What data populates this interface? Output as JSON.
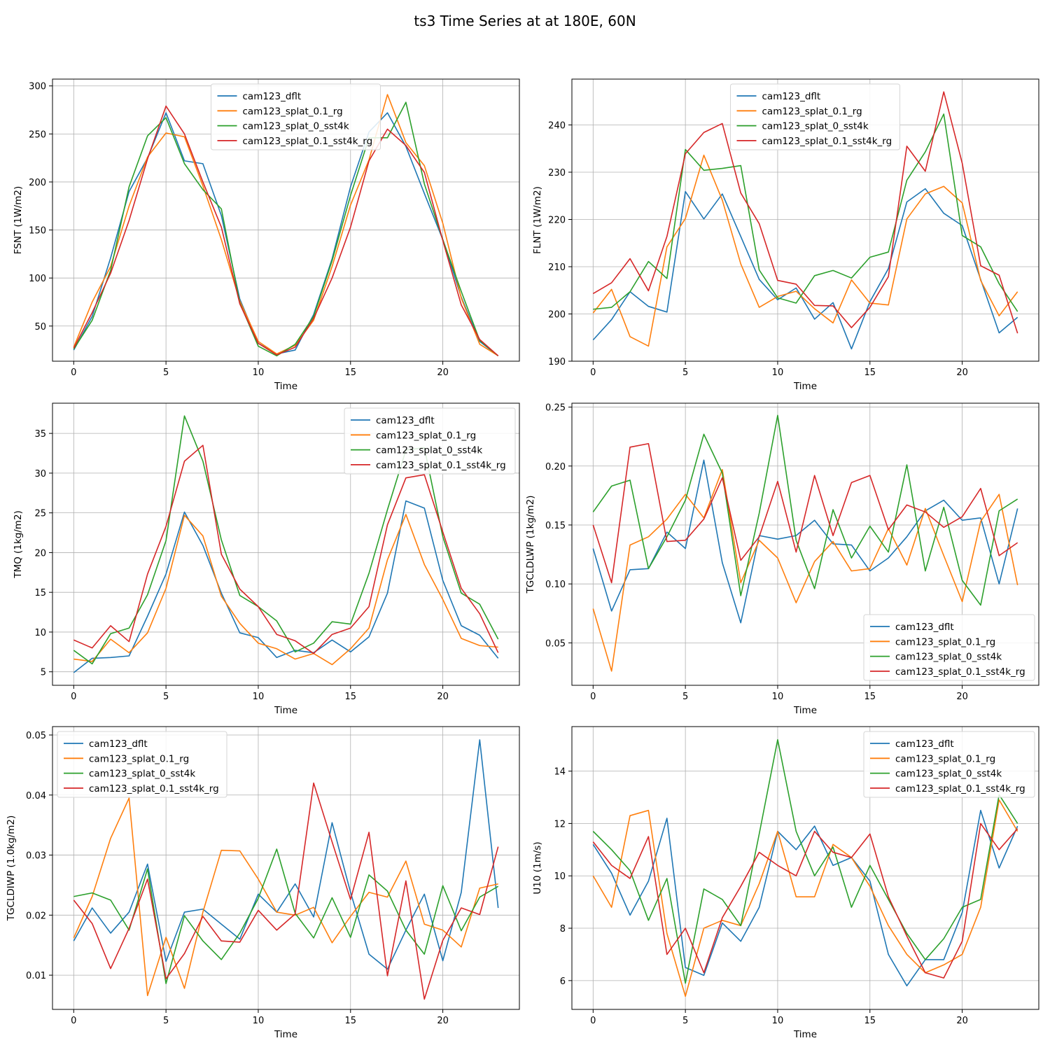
{
  "figure": {
    "title": "ts3 Time Series at at 180E, 60N"
  },
  "colors": {
    "cam123_dflt": "#1f77b4",
    "cam123_splat_0.1_rg": "#ff7f0e",
    "cam123_splat_0_sst4k": "#2ca02c",
    "cam123_splat_0.1_sst4k_rg": "#d62728"
  },
  "chart_data": [
    {
      "type": "line",
      "id": "fsnt",
      "xlabel": "Time",
      "ylabel": "FSNT (1W/m2)",
      "xlim": [
        -1.15,
        24.15
      ],
      "ylim": [
        13.4,
        307.1
      ],
      "xticks": [
        0,
        5,
        10,
        15,
        20
      ],
      "yticks": [
        50,
        100,
        150,
        200,
        250,
        300
      ],
      "legend": "upper-center",
      "x": [
        0,
        1,
        2,
        3,
        4,
        5,
        6,
        7,
        8,
        9,
        10,
        11,
        12,
        13,
        14,
        15,
        16,
        17,
        18,
        19,
        20,
        21,
        22,
        23
      ],
      "series": [
        {
          "name": "cam123_dflt",
          "values": [
            25,
            60,
            121,
            190,
            225,
            272,
            222,
            219,
            165,
            78,
            32,
            21,
            25,
            62,
            120,
            195,
            252,
            272,
            237,
            188,
            140,
            80,
            34,
            19
          ]
        },
        {
          "name": "cam123_splat_0.1_rg",
          "values": [
            28,
            75,
            112,
            175,
            226,
            251,
            247,
            196,
            140,
            76,
            34,
            21,
            30,
            56,
            112,
            176,
            223,
            291,
            241,
            217,
            157,
            79,
            31,
            19
          ]
        },
        {
          "name": "cam123_splat_0_sst4k",
          "values": [
            26,
            56,
            108,
            195,
            248,
            267,
            219,
            192,
            172,
            74,
            29,
            19,
            31,
            60,
            118,
            186,
            246,
            246,
            283,
            198,
            140,
            86,
            35,
            19
          ]
        },
        {
          "name": "cam123_splat_0.1_sst4k_rg",
          "values": [
            27,
            64,
            105,
            160,
            224,
            279,
            250,
            200,
            153,
            73,
            32,
            20,
            28,
            58,
            100,
            153,
            222,
            255,
            238,
            210,
            139,
            72,
            36,
            19
          ]
        }
      ]
    },
    {
      "type": "line",
      "id": "flnt",
      "xlabel": "Time",
      "ylabel": "FLNT (1W/m2)",
      "xlim": [
        -1.15,
        24.15
      ],
      "ylim": [
        190,
        249.7
      ],
      "xticks": [
        0,
        5,
        10,
        15,
        20
      ],
      "yticks": [
        190,
        200,
        210,
        220,
        230,
        240
      ],
      "legend": "upper-center",
      "x": [
        0,
        1,
        2,
        3,
        4,
        5,
        6,
        7,
        8,
        9,
        10,
        11,
        12,
        13,
        14,
        15,
        16,
        17,
        18,
        19,
        20,
        21,
        22,
        23
      ],
      "series": [
        {
          "name": "cam123_dflt",
          "values": [
            194.5,
            198.8,
            204.7,
            201.6,
            200.4,
            225.9,
            220.1,
            225.4,
            216.4,
            207.3,
            203,
            205.5,
            198.9,
            202.4,
            192.6,
            202.6,
            209.6,
            223.7,
            226.5,
            221.3,
            218.7,
            207.3,
            196,
            199.3
          ]
        },
        {
          "name": "cam123_splat_0.1_rg",
          "values": [
            200.2,
            205.2,
            195.2,
            193.2,
            214.2,
            220.2,
            233.6,
            224.1,
            210.6,
            201.4,
            203.7,
            204.8,
            201.1,
            198.1,
            207.2,
            202.3,
            201.9,
            220.1,
            225.4,
            227,
            223.5,
            207.1,
            199.6,
            204.7
          ]
        },
        {
          "name": "cam123_splat_0_sst4k",
          "values": [
            201,
            201.4,
            204.7,
            211.1,
            207.5,
            234.8,
            230.4,
            230.8,
            231.4,
            209.3,
            203.4,
            202.3,
            208.1,
            209.2,
            207.6,
            212,
            213.1,
            228.3,
            234.3,
            242.3,
            216.6,
            214.2,
            206.4,
            200.5
          ]
        },
        {
          "name": "cam123_splat_0.1_sst4k_rg",
          "values": [
            204.3,
            206.6,
            211.7,
            204.9,
            216.4,
            233.9,
            238.4,
            240.3,
            225.6,
            219.1,
            207.1,
            206.3,
            201.8,
            201.7,
            197.1,
            201.4,
            207.9,
            235.5,
            230.2,
            247,
            231.9,
            210.2,
            208.2,
            195.9
          ]
        }
      ]
    },
    {
      "type": "line",
      "id": "tmq",
      "xlabel": "Time",
      "ylabel": "TMQ (1kg/m2)",
      "xlim": [
        -1.15,
        24.15
      ],
      "ylim": [
        3.3,
        38.8
      ],
      "xticks": [
        0,
        5,
        10,
        15,
        20
      ],
      "yticks": [
        5,
        10,
        15,
        20,
        25,
        30,
        35
      ],
      "legend": "upper-right",
      "x": [
        0,
        1,
        2,
        3,
        4,
        5,
        6,
        7,
        8,
        9,
        10,
        11,
        12,
        13,
        14,
        15,
        16,
        17,
        18,
        19,
        20,
        21,
        22,
        23
      ],
      "series": [
        {
          "name": "cam123_dflt",
          "values": [
            4.9,
            6.7,
            6.8,
            7,
            12,
            17.3,
            25.1,
            20.9,
            14.9,
            9.9,
            9.3,
            6.8,
            7.7,
            7.4,
            9,
            7.5,
            9.4,
            14.9,
            26.5,
            25.6,
            16.5,
            10.8,
            9.6,
            6.7
          ]
        },
        {
          "name": "cam123_splat_0.1_rg",
          "values": [
            6.6,
            6.3,
            9.1,
            7.4,
            9.9,
            15.5,
            24.7,
            22.1,
            14.5,
            11.1,
            8.6,
            7.9,
            6.6,
            7.3,
            5.9,
            7.9,
            10.5,
            19.1,
            24.8,
            18.5,
            14.1,
            9.2,
            8.3,
            8.1
          ]
        },
        {
          "name": "cam123_splat_0_sst4k",
          "values": [
            7.7,
            6,
            9.8,
            10.5,
            14.7,
            21.5,
            37.2,
            31.5,
            21.6,
            14.6,
            13.2,
            11.4,
            7.5,
            8.6,
            11.3,
            11,
            17.4,
            25.4,
            32.9,
            33.2,
            22,
            14.9,
            13.5,
            9.1
          ]
        },
        {
          "name": "cam123_splat_0.1_sst4k_rg",
          "values": [
            9,
            8,
            10.8,
            8.8,
            17.3,
            23.3,
            31.5,
            33.5,
            19.8,
            15.4,
            13.2,
            9.7,
            8.9,
            7.3,
            9.7,
            10.5,
            13.2,
            23.5,
            29.4,
            29.8,
            22.6,
            15.5,
            12.3,
            7.4
          ]
        }
      ]
    },
    {
      "type": "line",
      "id": "tgcldlwp",
      "xlabel": "Time",
      "ylabel": "TGCLDLWP (1kg/m2)",
      "xlim": [
        -1.15,
        24.15
      ],
      "ylim": [
        0.014,
        0.2533
      ],
      "xticks": [
        0,
        5,
        10,
        15,
        20
      ],
      "yticks": [
        0.05,
        0.1,
        0.15,
        0.2,
        0.25
      ],
      "ytick_labels": [
        "0.05",
        "0.10",
        "0.15",
        "0.20",
        "0.25"
      ],
      "legend": "lower-right",
      "x": [
        0,
        1,
        2,
        3,
        4,
        5,
        6,
        7,
        8,
        9,
        10,
        11,
        12,
        13,
        14,
        15,
        16,
        17,
        18,
        19,
        20,
        21,
        22,
        23
      ],
      "series": [
        {
          "name": "cam123_dflt",
          "values": [
            0.13,
            0.077,
            0.112,
            0.113,
            0.144,
            0.13,
            0.205,
            0.118,
            0.067,
            0.141,
            0.138,
            0.141,
            0.154,
            0.134,
            0.133,
            0.111,
            0.122,
            0.14,
            0.162,
            0.171,
            0.154,
            0.156,
            0.1,
            0.164
          ]
        },
        {
          "name": "cam123_splat_0.1_rg",
          "values": [
            0.079,
            0.026,
            0.133,
            0.14,
            0.155,
            0.176,
            0.156,
            0.197,
            0.101,
            0.137,
            0.122,
            0.084,
            0.119,
            0.136,
            0.111,
            0.113,
            0.147,
            0.116,
            0.164,
            0.124,
            0.085,
            0.153,
            0.176,
            0.099
          ]
        },
        {
          "name": "cam123_splat_0_sst4k",
          "values": [
            0.161,
            0.183,
            0.188,
            0.113,
            0.14,
            0.171,
            0.227,
            0.194,
            0.09,
            0.16,
            0.243,
            0.137,
            0.096,
            0.163,
            0.122,
            0.149,
            0.127,
            0.201,
            0.111,
            0.165,
            0.103,
            0.082,
            0.162,
            0.172
          ]
        },
        {
          "name": "cam123_splat_0.1_sst4k_rg",
          "values": [
            0.15,
            0.101,
            0.216,
            0.219,
            0.136,
            0.137,
            0.155,
            0.19,
            0.12,
            0.14,
            0.187,
            0.127,
            0.192,
            0.141,
            0.186,
            0.192,
            0.146,
            0.167,
            0.161,
            0.148,
            0.157,
            0.181,
            0.124,
            0.135
          ]
        }
      ]
    },
    {
      "type": "line",
      "id": "tgcldiwp",
      "xlabel": "Time",
      "ylabel": "TGCLDIWP (1.0kg/m2)",
      "xlim": [
        -1.15,
        24.15
      ],
      "ylim": [
        0.0043,
        0.0514
      ],
      "xticks": [
        0,
        5,
        10,
        15,
        20
      ],
      "yticks": [
        0.01,
        0.02,
        0.03,
        0.04,
        0.05
      ],
      "ytick_labels": [
        "0.01",
        "0.02",
        "0.03",
        "0.04",
        "0.05"
      ],
      "legend": "upper-left",
      "x": [
        0,
        1,
        2,
        3,
        4,
        5,
        6,
        7,
        8,
        9,
        10,
        11,
        12,
        13,
        14,
        15,
        16,
        17,
        18,
        19,
        20,
        21,
        22,
        23
      ],
      "series": [
        {
          "name": "cam123_dflt",
          "values": [
            0.0157,
            0.0212,
            0.017,
            0.0205,
            0.0285,
            0.0123,
            0.0205,
            0.021,
            0.0185,
            0.016,
            0.0235,
            0.0205,
            0.0252,
            0.0197,
            0.0354,
            0.0238,
            0.0135,
            0.011,
            0.0175,
            0.0235,
            0.0124,
            0.0238,
            0.0492,
            0.0212
          ]
        },
        {
          "name": "cam123_splat_0.1_rg",
          "values": [
            0.0162,
            0.0231,
            0.0328,
            0.0395,
            0.0066,
            0.0163,
            0.0078,
            0.0205,
            0.0308,
            0.0307,
            0.026,
            0.0205,
            0.02,
            0.0213,
            0.0154,
            0.0198,
            0.0238,
            0.023,
            0.029,
            0.0185,
            0.0175,
            0.0147,
            0.0245,
            0.0252
          ]
        },
        {
          "name": "cam123_splat_0_sst4k",
          "values": [
            0.0231,
            0.0237,
            0.0225,
            0.0175,
            0.0277,
            0.0086,
            0.0199,
            0.0157,
            0.0126,
            0.017,
            0.0228,
            0.031,
            0.0203,
            0.0162,
            0.0229,
            0.0163,
            0.0267,
            0.024,
            0.0175,
            0.0135,
            0.0249,
            0.0174,
            0.023,
            0.0248
          ]
        },
        {
          "name": "cam123_splat_0.1_sst4k_rg",
          "values": [
            0.0225,
            0.0186,
            0.0111,
            0.0178,
            0.026,
            0.0094,
            0.0136,
            0.0198,
            0.0157,
            0.0155,
            0.0208,
            0.0175,
            0.0202,
            0.042,
            0.0322,
            0.0226,
            0.0338,
            0.0099,
            0.0257,
            0.006,
            0.0158,
            0.0212,
            0.0201,
            0.0314
          ]
        }
      ]
    },
    {
      "type": "line",
      "id": "u10",
      "xlabel": "Time",
      "ylabel": "U10 (1m/s)",
      "xlim": [
        -1.15,
        24.15
      ],
      "ylim": [
        4.9,
        15.7
      ],
      "xticks": [
        0,
        5,
        10,
        15,
        20
      ],
      "yticks": [
        6,
        8,
        10,
        12,
        14
      ],
      "legend": "upper-right",
      "x": [
        0,
        1,
        2,
        3,
        4,
        5,
        6,
        7,
        8,
        9,
        10,
        11,
        12,
        13,
        14,
        15,
        16,
        17,
        18,
        19,
        20,
        21,
        22,
        23
      ],
      "series": [
        {
          "name": "cam123_dflt",
          "values": [
            11.2,
            10.1,
            8.5,
            9.8,
            12.2,
            6.5,
            6.2,
            8.2,
            7.5,
            8.8,
            11.7,
            11,
            11.9,
            10.4,
            10.7,
            9.8,
            7,
            5.8,
            6.8,
            6.8,
            8.6,
            12.5,
            10.3,
            11.9
          ]
        },
        {
          "name": "cam123_splat_0.1_rg",
          "values": [
            10,
            8.8,
            12.3,
            12.5,
            7.8,
            5.4,
            8,
            8.3,
            8.1,
            9.7,
            11.7,
            9.2,
            9.2,
            11.2,
            10.7,
            9.6,
            8.1,
            7,
            6.3,
            6.6,
            7,
            8.8,
            12.9,
            11.7
          ]
        },
        {
          "name": "cam123_splat_0_sst4k",
          "values": [
            11.7,
            11,
            10.2,
            8.3,
            9.9,
            5.9,
            9.5,
            9.1,
            8.1,
            11.6,
            15.2,
            11.7,
            10,
            11.1,
            8.8,
            10.4,
            9.1,
            7.8,
            6.8,
            7.6,
            8.8,
            9.1,
            13.1,
            12
          ]
        },
        {
          "name": "cam123_splat_0.1_sst4k_rg",
          "values": [
            11.3,
            10.4,
            9.9,
            11.5,
            7,
            8,
            6.3,
            8.4,
            9.6,
            10.9,
            10.4,
            10,
            11.7,
            10.9,
            10.7,
            11.6,
            9.2,
            7.7,
            6.3,
            6.1,
            7.5,
            12,
            11,
            11.8
          ]
        }
      ]
    }
  ]
}
